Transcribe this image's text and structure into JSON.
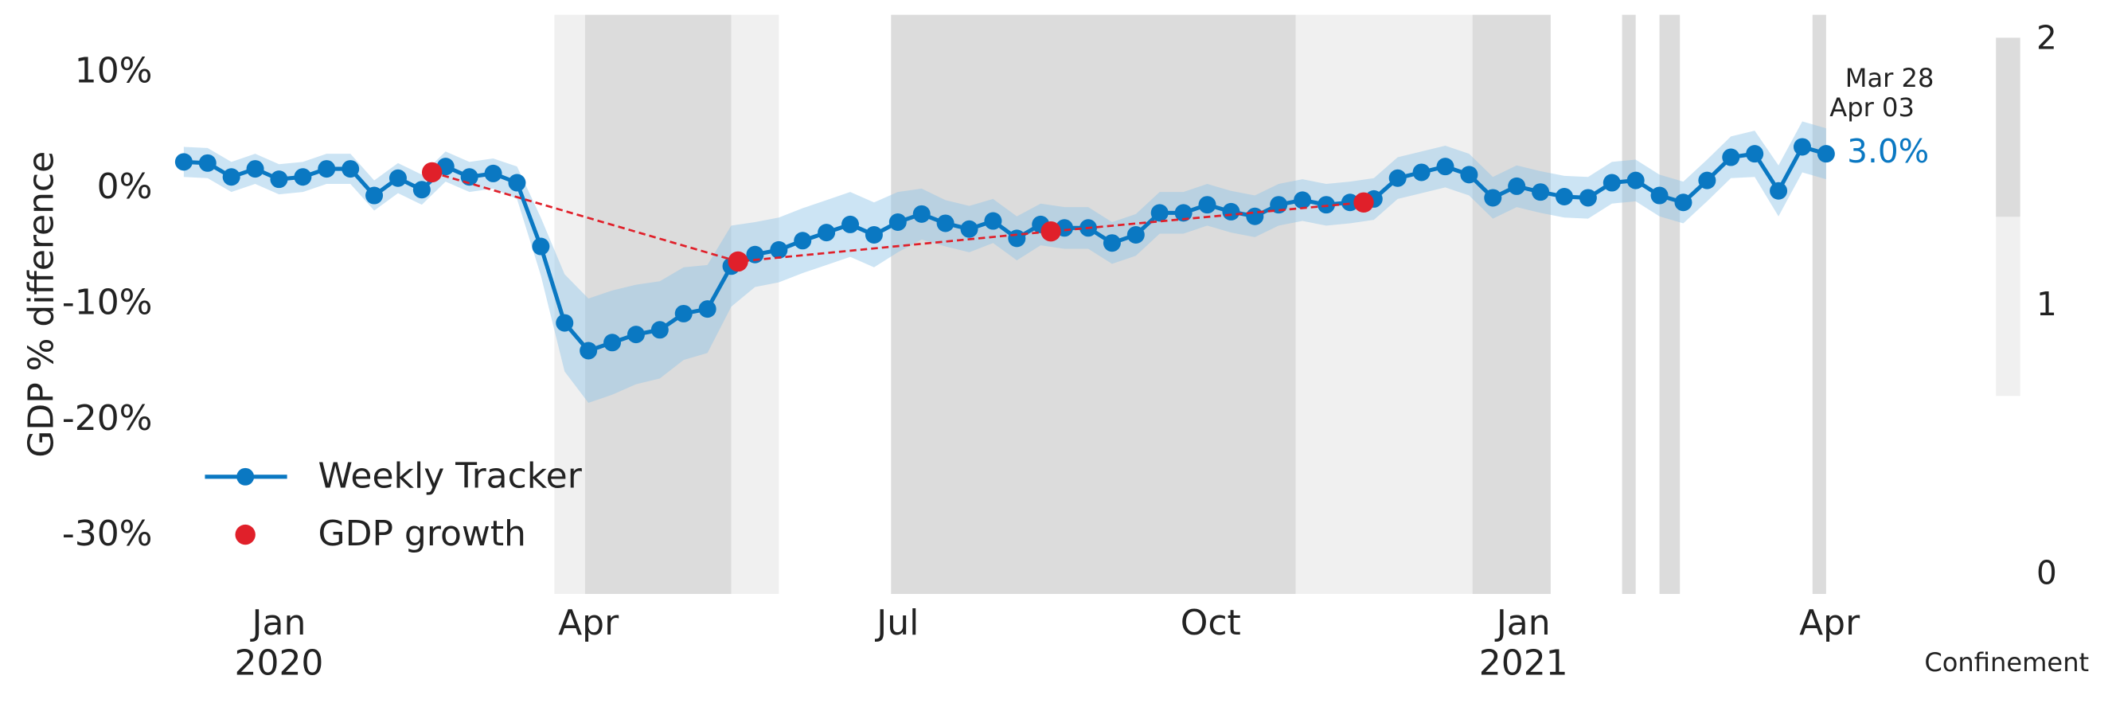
{
  "chart_data": {
    "type": "line",
    "ylabel": "GDP % difference",
    "ylim": [
      -35,
      15
    ],
    "yticks": [
      {
        "value": 10,
        "label": "10%"
      },
      {
        "value": 0,
        "label": "0%"
      },
      {
        "value": -10,
        "label": "-10%"
      },
      {
        "value": -20,
        "label": "-20%"
      },
      {
        "value": -30,
        "label": "-30%"
      }
    ],
    "xlim": [
      "2019-11-30",
      "2021-04-05"
    ],
    "xticks": [
      {
        "value": "2020-01-01",
        "label": "Jan"
      },
      {
        "value": "2020-04-01",
        "label": "Apr"
      },
      {
        "value": "2020-07-01",
        "label": "Jul"
      },
      {
        "value": "2020-10-01",
        "label": "Oct"
      },
      {
        "value": "2021-01-01",
        "label": "Jan"
      },
      {
        "value": "2021-04-01",
        "label": "Apr"
      }
    ],
    "xyears": [
      {
        "value": "2020-01-01",
        "label": "2020"
      },
      {
        "value": "2021-01-01",
        "label": "2021"
      }
    ],
    "grid": false,
    "legend": "lower left",
    "x": [
      "2019-12-04",
      "2019-12-11",
      "2019-12-18",
      "2019-12-25",
      "2020-01-01",
      "2020-01-08",
      "2020-01-15",
      "2020-01-22",
      "2020-01-29",
      "2020-02-05",
      "2020-02-12",
      "2020-02-19",
      "2020-02-26",
      "2020-03-04",
      "2020-03-11",
      "2020-03-18",
      "2020-03-25",
      "2020-04-01",
      "2020-04-08",
      "2020-04-15",
      "2020-04-22",
      "2020-04-29",
      "2020-05-06",
      "2020-05-13",
      "2020-05-20",
      "2020-05-27",
      "2020-06-03",
      "2020-06-10",
      "2020-06-17",
      "2020-06-24",
      "2020-07-01",
      "2020-07-08",
      "2020-07-15",
      "2020-07-22",
      "2020-07-29",
      "2020-08-05",
      "2020-08-12",
      "2020-08-19",
      "2020-08-26",
      "2020-09-02",
      "2020-09-09",
      "2020-09-16",
      "2020-09-23",
      "2020-09-30",
      "2020-10-07",
      "2020-10-14",
      "2020-10-21",
      "2020-10-28",
      "2020-11-04",
      "2020-11-11",
      "2020-11-18",
      "2020-11-25",
      "2020-12-02",
      "2020-12-09",
      "2020-12-16",
      "2020-12-23",
      "2020-12-30",
      "2021-01-06",
      "2021-01-13",
      "2021-01-20",
      "2021-01-27",
      "2021-02-03",
      "2021-02-10",
      "2021-02-17",
      "2021-02-24",
      "2021-03-03",
      "2021-03-10",
      "2021-03-17",
      "2021-03-24",
      "2021-03-31"
    ],
    "series": [
      {
        "name": "Weekly Tracker",
        "color": "#0a78c2",
        "band_color": "#8fc3e6",
        "values": [
          2.3,
          2.2,
          1.0,
          1.7,
          0.8,
          1.0,
          1.7,
          1.7,
          -0.6,
          0.9,
          -0.1,
          1.9,
          1.0,
          1.3,
          0.5,
          -5.0,
          -11.6,
          -14.0,
          -13.3,
          -12.6,
          -12.2,
          -10.8,
          -10.4,
          -6.7,
          -5.7,
          -5.3,
          -4.5,
          -3.8,
          -3.1,
          -4.0,
          -2.9,
          -2.2,
          -3.0,
          -3.5,
          -2.8,
          -4.3,
          -3.1,
          -3.4,
          -3.4,
          -4.7,
          -4.0,
          -2.1,
          -2.1,
          -1.4,
          -2.0,
          -2.4,
          -1.4,
          -1.0,
          -1.4,
          -1.2,
          -0.9,
          0.9,
          1.4,
          1.9,
          1.2,
          -0.8,
          0.2,
          -0.3,
          -0.7,
          -0.8,
          0.5,
          0.7,
          -0.6,
          -1.2,
          0.7,
          2.7,
          3.0,
          -0.2,
          3.6,
          3.0
        ],
        "error": [
          1.3,
          1.3,
          1.3,
          1.3,
          1.3,
          1.3,
          1.3,
          1.3,
          1.3,
          1.3,
          1.3,
          1.3,
          1.3,
          1.3,
          1.4,
          2.5,
          4.2,
          4.5,
          4.5,
          4.3,
          4.2,
          4.0,
          3.8,
          3.5,
          2.8,
          2.8,
          2.8,
          2.8,
          2.8,
          2.8,
          2.6,
          2.2,
          2.0,
          2.0,
          1.9,
          1.9,
          1.8,
          1.8,
          1.8,
          1.8,
          1.8,
          1.8,
          1.8,
          1.8,
          1.8,
          1.8,
          1.8,
          1.8,
          1.8,
          1.8,
          1.8,
          1.8,
          1.8,
          1.8,
          1.8,
          1.8,
          1.8,
          1.8,
          1.8,
          1.8,
          1.8,
          1.8,
          1.8,
          1.8,
          1.8,
          1.8,
          2.0,
          2.2,
          2.2,
          2.2
        ],
        "value_labels": [
          null,
          null,
          null,
          null,
          null,
          null,
          null,
          null,
          null,
          null,
          null,
          null,
          null,
          null,
          null,
          null,
          null,
          null,
          null,
          null,
          null,
          null,
          null,
          null,
          null,
          null,
          null,
          null,
          null,
          null,
          null,
          null,
          null,
          null,
          null,
          null,
          null,
          null,
          null,
          null,
          null,
          null,
          null,
          null,
          null,
          null,
          null,
          null,
          null,
          null,
          null,
          null,
          null,
          null,
          null,
          null,
          null,
          null,
          null,
          null,
          null,
          null,
          null,
          null,
          null,
          null,
          null,
          null,
          null,
          "3.0%"
        ]
      },
      {
        "name": "GDP growth",
        "color": "#e0202a",
        "style": "dashed",
        "x": [
          "2020-02-15",
          "2020-05-15",
          "2020-08-15",
          "2020-11-15"
        ],
        "values": [
          1.4,
          -6.3,
          -3.7,
          -1.2
        ]
      }
    ],
    "annotations": [
      "Mar 28",
      "Apr 03"
    ],
    "confinement": {
      "name": "Confinement",
      "clim": [
        0,
        2
      ],
      "cticks": [
        0,
        1,
        2
      ],
      "colors": [
        "#ffffff",
        "#f0f0f0",
        "#dcdcdc"
      ],
      "periods": [
        {
          "start": "2020-03-22",
          "end": "2020-03-31",
          "level": 1
        },
        {
          "start": "2020-03-31",
          "end": "2020-05-13",
          "level": 2
        },
        {
          "start": "2020-05-13",
          "end": "2020-05-27",
          "level": 1
        },
        {
          "start": "2020-06-29",
          "end": "2020-10-26",
          "level": 2
        },
        {
          "start": "2020-10-26",
          "end": "2020-12-17",
          "level": 1
        },
        {
          "start": "2020-12-17",
          "end": "2021-01-09",
          "level": 2
        },
        {
          "start": "2021-01-30",
          "end": "2021-02-03",
          "level": 2
        },
        {
          "start": "2021-02-10",
          "end": "2021-02-16",
          "level": 2
        },
        {
          "start": "2021-03-27",
          "end": "2021-03-31",
          "level": 2
        }
      ]
    }
  }
}
